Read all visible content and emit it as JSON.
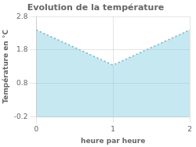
{
  "chart_data": {
    "type": "area",
    "title": "Evolution de la température",
    "xlabel": "heure par heure",
    "ylabel": "Température en °C",
    "x": [
      0,
      1,
      2
    ],
    "series": [
      {
        "values": [
          2.4,
          1.35,
          2.4
        ],
        "color": "#5bbcd4",
        "line_style": "dotted"
      }
    ],
    "xlim": [
      0,
      2
    ],
    "ylim": [
      -0.2,
      2.8
    ],
    "xticks": [
      0,
      1,
      2
    ],
    "yticks": [
      -0.2,
      0.8,
      1.8,
      2.8
    ],
    "grid": true
  }
}
